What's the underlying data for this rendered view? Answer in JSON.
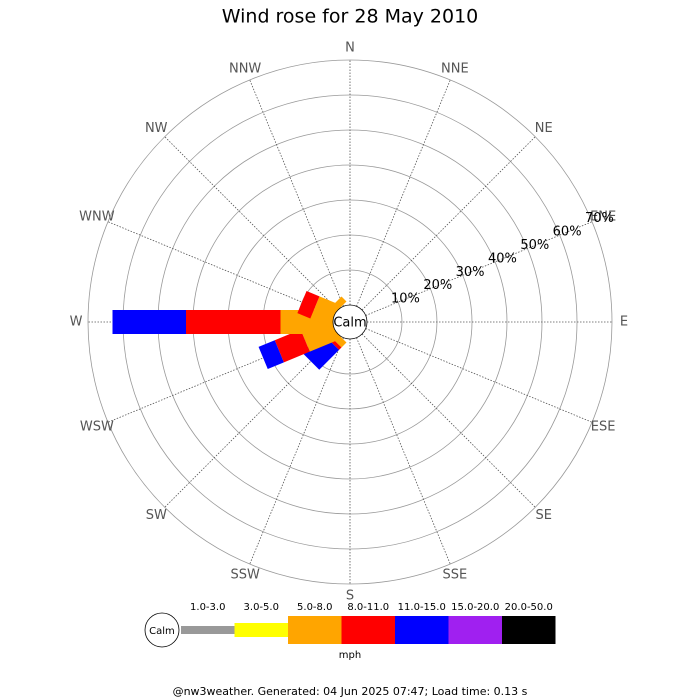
{
  "chart_data": {
    "type": "windrose",
    "title": "Wind rose for 28 May 2010",
    "categories": [
      "N",
      "NNE",
      "NE",
      "ENE",
      "E",
      "ESE",
      "SE",
      "SSE",
      "S",
      "SSW",
      "SW",
      "WSW",
      "W",
      "WNW",
      "NW",
      "NNW"
    ],
    "calm_label": "Calm",
    "rlim": [
      0,
      70
    ],
    "rticks": [
      {
        "value": 10,
        "label": "10%"
      },
      {
        "value": 20,
        "label": "20%"
      },
      {
        "value": 30,
        "label": "30%"
      },
      {
        "value": 40,
        "label": "40%"
      },
      {
        "value": 50,
        "label": "50%"
      },
      {
        "value": 60,
        "label": "60%"
      },
      {
        "value": 70,
        "label": "70%"
      }
    ],
    "unit": "mph",
    "series": [
      {
        "name": "1.0-3.0",
        "color": "#999999",
        "values": [
          0,
          0,
          0,
          0,
          0,
          0,
          0,
          0,
          0,
          0,
          0,
          0,
          0,
          0,
          0,
          0
        ]
      },
      {
        "name": "3.0-5.0",
        "color": "#ffff00",
        "values": [
          0,
          0,
          0,
          0,
          0,
          0,
          0,
          0,
          0,
          0,
          0,
          0,
          0,
          0,
          0,
          0
        ]
      },
      {
        "name": "5.0-8.0",
        "color": "#ffa500",
        "values": [
          0,
          0,
          0,
          0,
          0,
          0,
          0,
          0,
          0,
          0,
          2,
          9,
          15,
          6,
          2,
          0
        ]
      },
      {
        "name": "8.0-11.0",
        "color": "#ff0000",
        "values": [
          0,
          0,
          0,
          0,
          0,
          0,
          0,
          0,
          0,
          0,
          1,
          8,
          27,
          4,
          0,
          0
        ]
      },
      {
        "name": "11.0-15.0",
        "color": "#0000ff",
        "values": [
          0,
          0,
          0,
          0,
          0,
          0,
          0,
          0,
          0,
          0,
          8,
          5,
          21,
          0,
          0,
          0
        ]
      },
      {
        "name": "15.0-20.0",
        "color": "#a020f0",
        "values": [
          0,
          0,
          0,
          0,
          0,
          0,
          0,
          0,
          0,
          0,
          0,
          0,
          0,
          0,
          0,
          0
        ]
      },
      {
        "name": "20.0-50.0",
        "color": "#000000",
        "values": [
          0,
          0,
          0,
          0,
          0,
          0,
          0,
          0,
          0,
          0,
          0,
          0,
          0,
          0,
          0,
          0
        ]
      }
    ],
    "footer": "@nw3weather. Generated: 04 Jun 2025 07:47; Load time: 0.13 s"
  }
}
